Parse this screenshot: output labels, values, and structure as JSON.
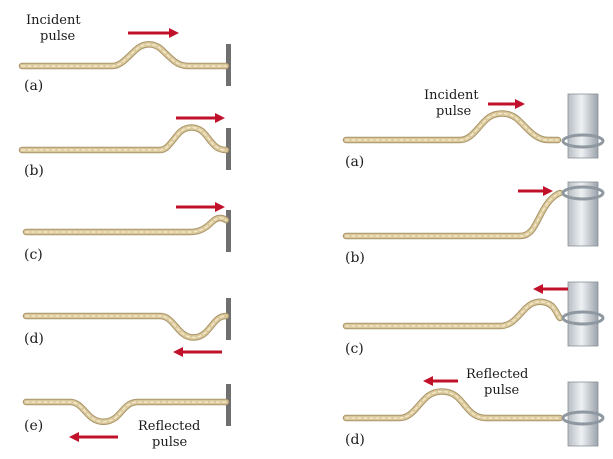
{
  "colors": {
    "rope": "#d9c79a",
    "rope_edge": "#a8956a",
    "rope_strand": "#f2e7c6",
    "arrow": "#c0102a",
    "wall": "#777777",
    "pole": "#d6dade",
    "ring": "#9aa3ab"
  },
  "left_panels": {
    "panels": [
      {
        "label": "(a)"
      },
      {
        "label": "(b)"
      },
      {
        "label": "(c)"
      },
      {
        "label": "(d)"
      },
      {
        "label": "(e)"
      }
    ],
    "incident_caption": [
      "Incident",
      "pulse"
    ],
    "reflected_caption": [
      "Reflected",
      "pulse"
    ]
  },
  "right_panels": {
    "panels": [
      {
        "label": "(a)"
      },
      {
        "label": "(b)"
      },
      {
        "label": "(c)"
      },
      {
        "label": "(d)"
      }
    ],
    "incident_caption": [
      "Incident",
      "pulse"
    ],
    "reflected_caption": [
      "Reflected",
      "pulse"
    ]
  }
}
